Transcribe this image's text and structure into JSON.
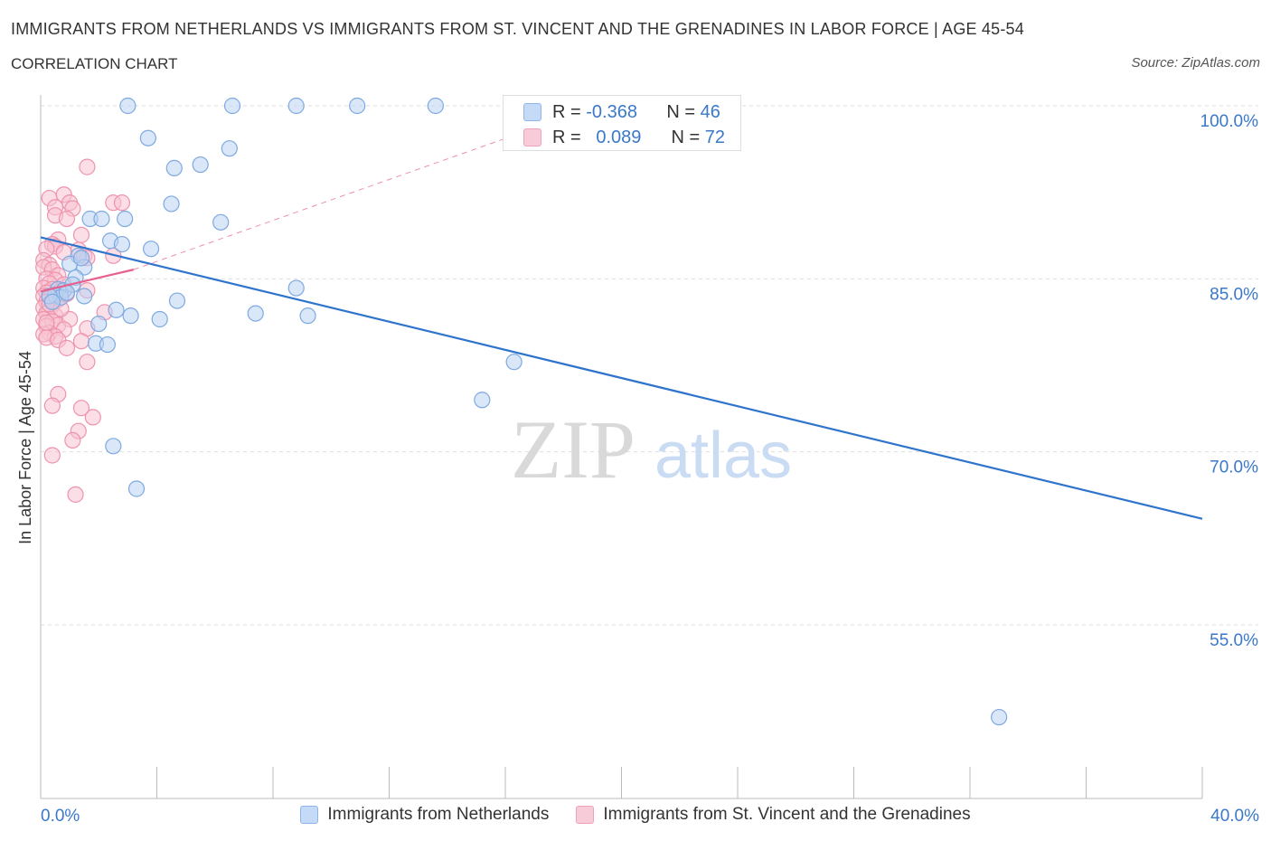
{
  "header": {
    "title": "IMMIGRANTS FROM NETHERLANDS VS IMMIGRANTS FROM ST. VINCENT AND THE GRENADINES IN LABOR FORCE | AGE 45-54",
    "subtitle": "CORRELATION CHART",
    "source": "Source: ZipAtlas.com"
  },
  "watermark": {
    "zip": "ZIP",
    "atlas": "atlas"
  },
  "stats": {
    "blue": {
      "r_label": "R =",
      "r_value": "-0.368",
      "n_label": "N =",
      "n_value": "46"
    },
    "pink": {
      "r_label": "R =",
      "r_value": "0.089",
      "n_label": "N =",
      "n_value": "72"
    }
  },
  "legend": {
    "blue": "Immigrants from Netherlands",
    "pink": "Immigrants from St. Vincent and the Grenadines"
  },
  "colors": {
    "blue_fill": "#b9d3f3",
    "blue_stroke": "#7ea9e0",
    "blue_line": "#2f74cc",
    "pink_fill": "#f7c3d2",
    "pink_stroke": "#ee93ae",
    "pink_line": "#e8608c",
    "grid": "#dddddd",
    "tick_label": "#3a78c9"
  },
  "chart_data": {
    "type": "scatter",
    "title": "IMMIGRANTS FROM NETHERLANDS VS IMMIGRANTS FROM ST. VINCENT AND THE GRENADINES IN LABOR FORCE | AGE 45-54",
    "xlabel": "",
    "ylabel": "In Labor Force | Age 45-54",
    "xlim": [
      0,
      40
    ],
    "ylim": [
      40,
      102
    ],
    "x_tick_labels": [
      "0.0%",
      "40.0%"
    ],
    "y_ticks": [
      100,
      85,
      70,
      55
    ],
    "y_tick_labels": [
      "100.0%",
      "85.0%",
      "70.0%",
      "55.0%"
    ],
    "series": [
      {
        "name": "Immigrants from Netherlands",
        "color": "blue",
        "points": [
          [
            3.0,
            100.0
          ],
          [
            6.6,
            100.0
          ],
          [
            8.8,
            100.0
          ],
          [
            10.9,
            100.0
          ],
          [
            13.6,
            100.0
          ],
          [
            3.7,
            97.2
          ],
          [
            6.5,
            96.3
          ],
          [
            4.6,
            94.6
          ],
          [
            5.5,
            94.9
          ],
          [
            4.5,
            91.5
          ],
          [
            1.7,
            90.2
          ],
          [
            2.1,
            90.2
          ],
          [
            2.9,
            90.2
          ],
          [
            6.2,
            89.9
          ],
          [
            2.4,
            88.3
          ],
          [
            2.8,
            88.0
          ],
          [
            3.8,
            87.6
          ],
          [
            1.3,
            87.0
          ],
          [
            1.0,
            86.3
          ],
          [
            1.5,
            86.0
          ],
          [
            1.2,
            85.1
          ],
          [
            0.6,
            84.1
          ],
          [
            0.8,
            84.0
          ],
          [
            0.5,
            83.6
          ],
          [
            0.7,
            83.4
          ],
          [
            1.5,
            83.5
          ],
          [
            8.8,
            84.2
          ],
          [
            4.7,
            83.1
          ],
          [
            2.6,
            82.3
          ],
          [
            3.1,
            81.8
          ],
          [
            4.1,
            81.5
          ],
          [
            7.4,
            82.0
          ],
          [
            9.2,
            81.8
          ],
          [
            2.0,
            81.1
          ],
          [
            1.9,
            79.4
          ],
          [
            2.3,
            79.3
          ],
          [
            16.3,
            77.8
          ],
          [
            15.2,
            74.5
          ],
          [
            2.5,
            70.5
          ],
          [
            3.3,
            66.8
          ],
          [
            33.0,
            47.0
          ],
          [
            0.3,
            83.5
          ],
          [
            0.4,
            83.0
          ],
          [
            1.1,
            84.5
          ],
          [
            0.9,
            83.8
          ],
          [
            1.4,
            86.8
          ]
        ]
      },
      {
        "name": "Immigrants from St. Vincent and the Grenadines",
        "color": "pink",
        "points": [
          [
            1.6,
            94.7
          ],
          [
            0.3,
            92.0
          ],
          [
            0.8,
            92.3
          ],
          [
            1.0,
            91.6
          ],
          [
            2.5,
            91.6
          ],
          [
            2.8,
            91.6
          ],
          [
            0.5,
            91.2
          ],
          [
            1.1,
            91.1
          ],
          [
            0.5,
            90.5
          ],
          [
            0.9,
            90.2
          ],
          [
            1.4,
            88.8
          ],
          [
            0.6,
            88.4
          ],
          [
            0.4,
            88.0
          ],
          [
            0.5,
            87.8
          ],
          [
            0.2,
            87.6
          ],
          [
            1.3,
            87.5
          ],
          [
            0.8,
            87.3
          ],
          [
            1.5,
            87.0
          ],
          [
            2.5,
            87.0
          ],
          [
            1.6,
            86.8
          ],
          [
            0.1,
            86.6
          ],
          [
            0.3,
            86.2
          ],
          [
            0.1,
            86.0
          ],
          [
            0.4,
            85.8
          ],
          [
            0.6,
            85.3
          ],
          [
            0.2,
            85.0
          ],
          [
            0.5,
            84.9
          ],
          [
            0.3,
            84.6
          ],
          [
            0.8,
            84.5
          ],
          [
            0.1,
            84.2
          ],
          [
            0.4,
            84.1
          ],
          [
            0.7,
            84.0
          ],
          [
            0.2,
            83.8
          ],
          [
            0.5,
            83.6
          ],
          [
            0.1,
            83.5
          ],
          [
            0.3,
            83.3
          ],
          [
            0.6,
            83.2
          ],
          [
            1.6,
            84.0
          ],
          [
            0.2,
            83.0
          ],
          [
            0.4,
            82.7
          ],
          [
            0.1,
            82.5
          ],
          [
            0.3,
            82.3
          ],
          [
            0.2,
            82.0
          ],
          [
            0.5,
            81.8
          ],
          [
            2.2,
            82.1
          ],
          [
            0.1,
            81.5
          ],
          [
            0.4,
            81.3
          ],
          [
            0.6,
            81.0
          ],
          [
            1.0,
            81.5
          ],
          [
            0.2,
            80.9
          ],
          [
            0.8,
            80.6
          ],
          [
            0.3,
            80.3
          ],
          [
            0.5,
            80.0
          ],
          [
            1.6,
            80.7
          ],
          [
            0.1,
            80.2
          ],
          [
            0.2,
            79.9
          ],
          [
            0.6,
            79.7
          ],
          [
            1.4,
            79.6
          ],
          [
            0.9,
            79.0
          ],
          [
            1.6,
            77.8
          ],
          [
            0.6,
            75.0
          ],
          [
            0.4,
            74.0
          ],
          [
            1.4,
            73.8
          ],
          [
            1.8,
            73.0
          ],
          [
            1.3,
            71.8
          ],
          [
            1.1,
            71.0
          ],
          [
            0.4,
            69.7
          ],
          [
            1.2,
            66.3
          ],
          [
            0.3,
            82.8
          ],
          [
            0.7,
            82.4
          ],
          [
            0.2,
            81.2
          ],
          [
            0.9,
            83.7
          ]
        ]
      }
    ],
    "trend_lines": [
      {
        "series": "Immigrants from Netherlands",
        "x": [
          0,
          40
        ],
        "y": [
          88.6,
          64.2
        ],
        "style": "solid"
      },
      {
        "series": "Immigrants from St. Vincent and the Grenadines",
        "x": [
          0,
          3.2
        ],
        "y": [
          83.9,
          85.8
        ],
        "style": "solid"
      },
      {
        "series": "Immigrants from St. Vincent and the Grenadines",
        "x": [
          3.2,
          17.5
        ],
        "y": [
          85.8,
          98.5
        ],
        "style": "dashed"
      }
    ]
  }
}
